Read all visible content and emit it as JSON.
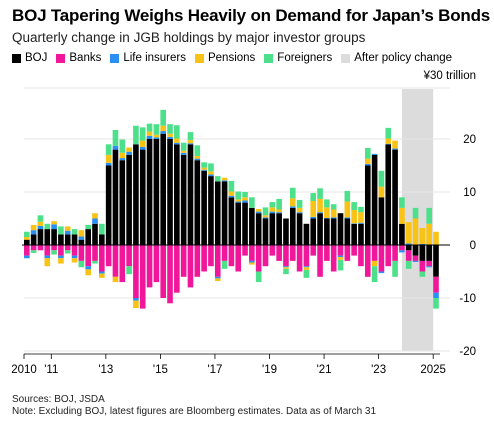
{
  "header": {
    "title": "BOJ Tapering Weighs Heavily on Demand for Japan’s Bonds",
    "subtitle": "Quarterly change in JGB holdings by major investor groups"
  },
  "footer": {
    "sources": "Sources: BOJ, JSDA",
    "note": "Note: Excluding BOJ, latest figures are Bloomberg estimates. Data as of March 31"
  },
  "colors": {
    "BOJ": "#000000",
    "Banks": "#f0179b",
    "Life insurers": "#2a8ff2",
    "Pensions": "#f9c316",
    "Foreigners": "#4de08a",
    "After policy change": "#dcdcdc"
  },
  "chart_data": {
    "type": "bar",
    "stacked": true,
    "unit_label": "¥30 trillion",
    "ylim": [
      -20,
      30
    ],
    "y_ticks": [
      "20",
      "10",
      "0",
      "-10",
      "-20"
    ],
    "y_tick_values": [
      20,
      10,
      0,
      -10,
      -20
    ],
    "x_tick_labels": [
      "2010",
      "'11",
      "'13",
      "'15",
      "'17",
      "'19",
      "'21",
      "'23",
      "2025"
    ],
    "x_tick_positions": [
      2010,
      2011,
      2013,
      2015,
      2017,
      2019,
      2021,
      2023,
      2025
    ],
    "x_start": 2010,
    "periods": 61,
    "legend": [
      "BOJ",
      "Banks",
      "Life insurers",
      "Pensions",
      "Foreigners",
      "After policy change"
    ],
    "shaded_region": {
      "label": "After policy change",
      "from": 2024,
      "to": 2025
    },
    "series": [
      {
        "name": "BOJ",
        "values": [
          1,
          2,
          3,
          3,
          3,
          2,
          2,
          2,
          1,
          3,
          4,
          2,
          15,
          18,
          16,
          17,
          19,
          18,
          20,
          20,
          21,
          20,
          19,
          17,
          19,
          16,
          14,
          13,
          12,
          12,
          9,
          8,
          8,
          7,
          6,
          5,
          6,
          6,
          5,
          7,
          6,
          4,
          5,
          6,
          5,
          5,
          6,
          5,
          4,
          4,
          15,
          17,
          9,
          19,
          18,
          4,
          -1,
          -2,
          -3,
          -3,
          -6
        ]
      },
      {
        "name": "Banks",
        "values": [
          -2,
          -1,
          -1,
          -2,
          -1,
          -2,
          -1,
          -2,
          -3,
          -4,
          -3,
          -5,
          -4,
          -6,
          -7,
          -4,
          -10,
          -12,
          -8,
          -7,
          -10,
          -11,
          -9,
          -6,
          -8,
          -6,
          -5,
          -4,
          -6,
          -3,
          -4,
          -5,
          -2,
          -3,
          -5,
          -4,
          -2,
          -3,
          -4,
          -3,
          -5,
          -4,
          -2,
          -6,
          -3,
          -5,
          -2,
          -3,
          -2,
          -4,
          -6,
          -3,
          -5,
          -4,
          -3,
          -1,
          -2,
          -1,
          -2,
          -1,
          -3
        ]
      },
      {
        "name": "Life insurers",
        "values": [
          -0.5,
          0.8,
          0.6,
          -0.5,
          0.9,
          -0.5,
          0.7,
          -0.5,
          0.6,
          -0.6,
          1.0,
          -0.4,
          0.5,
          0.7,
          0.4,
          0.6,
          -0.5,
          0.5,
          0.6,
          0.3,
          0.5,
          0.4,
          0.3,
          0.4,
          0.2,
          0.3,
          0.2,
          0.3,
          -0.3,
          0.2,
          0.3,
          0.2,
          0.4,
          -0.3,
          0.3,
          0.2,
          0.3,
          0.2,
          -0.2,
          0.3,
          0.2,
          -0.2,
          0.3,
          0.2,
          0.1,
          0.2,
          -0.3,
          0.2,
          0.1,
          0.2,
          0.3,
          0.2,
          -0.3,
          0.1,
          0.2,
          -0.4,
          0.3,
          -0.2,
          0.2,
          -0.2,
          -1.0
        ]
      },
      {
        "name": "Pensions",
        "values": [
          0.5,
          1.0,
          0.8,
          -1.5,
          0.6,
          -1.0,
          0.8,
          -0.8,
          1.2,
          -1.1,
          1.0,
          -0.8,
          1.5,
          -1.0,
          1.0,
          0.8,
          -1.4,
          1.2,
          0.8,
          0.5,
          1.0,
          0.6,
          0.8,
          0.4,
          0.6,
          0.5,
          0.4,
          0.6,
          -0.5,
          0.5,
          0.8,
          0.4,
          0.6,
          -0.4,
          0.5,
          0.4,
          0.8,
          0.5,
          -0.3,
          1.5,
          0.8,
          -0.5,
          3.0,
          2.5,
          2.0,
          1.5,
          -0.5,
          3.0,
          2.5,
          2.0,
          1.0,
          -1.0,
          2.0,
          1.0,
          1.5,
          3.0,
          4.0,
          5.0,
          3.0,
          4.0,
          2.5
        ]
      },
      {
        "name": "Foreigners",
        "values": [
          1.0,
          -0.5,
          1.2,
          1.0,
          -0.8,
          1.5,
          -0.6,
          1.0,
          -1.2,
          0.8,
          -0.5,
          2.0,
          2.0,
          3.0,
          2.5,
          -1.5,
          3.5,
          2.5,
          1.5,
          2.0,
          3.0,
          1.8,
          2.5,
          1.5,
          1.5,
          2.0,
          1.0,
          1.5,
          1.0,
          -1.5,
          2.0,
          1.5,
          1.0,
          2.0,
          -2.0,
          1.5,
          1.0,
          2.0,
          -1.0,
          2.0,
          1.5,
          -1.5,
          1.5,
          2.0,
          1.5,
          1.0,
          -2.0,
          2.0,
          1.5,
          1.0,
          2.0,
          -3.0,
          3.0,
          2.0,
          -3.0,
          2.0,
          -1.5,
          2.0,
          -1.0,
          3.0,
          -2.0
        ]
      }
    ]
  }
}
